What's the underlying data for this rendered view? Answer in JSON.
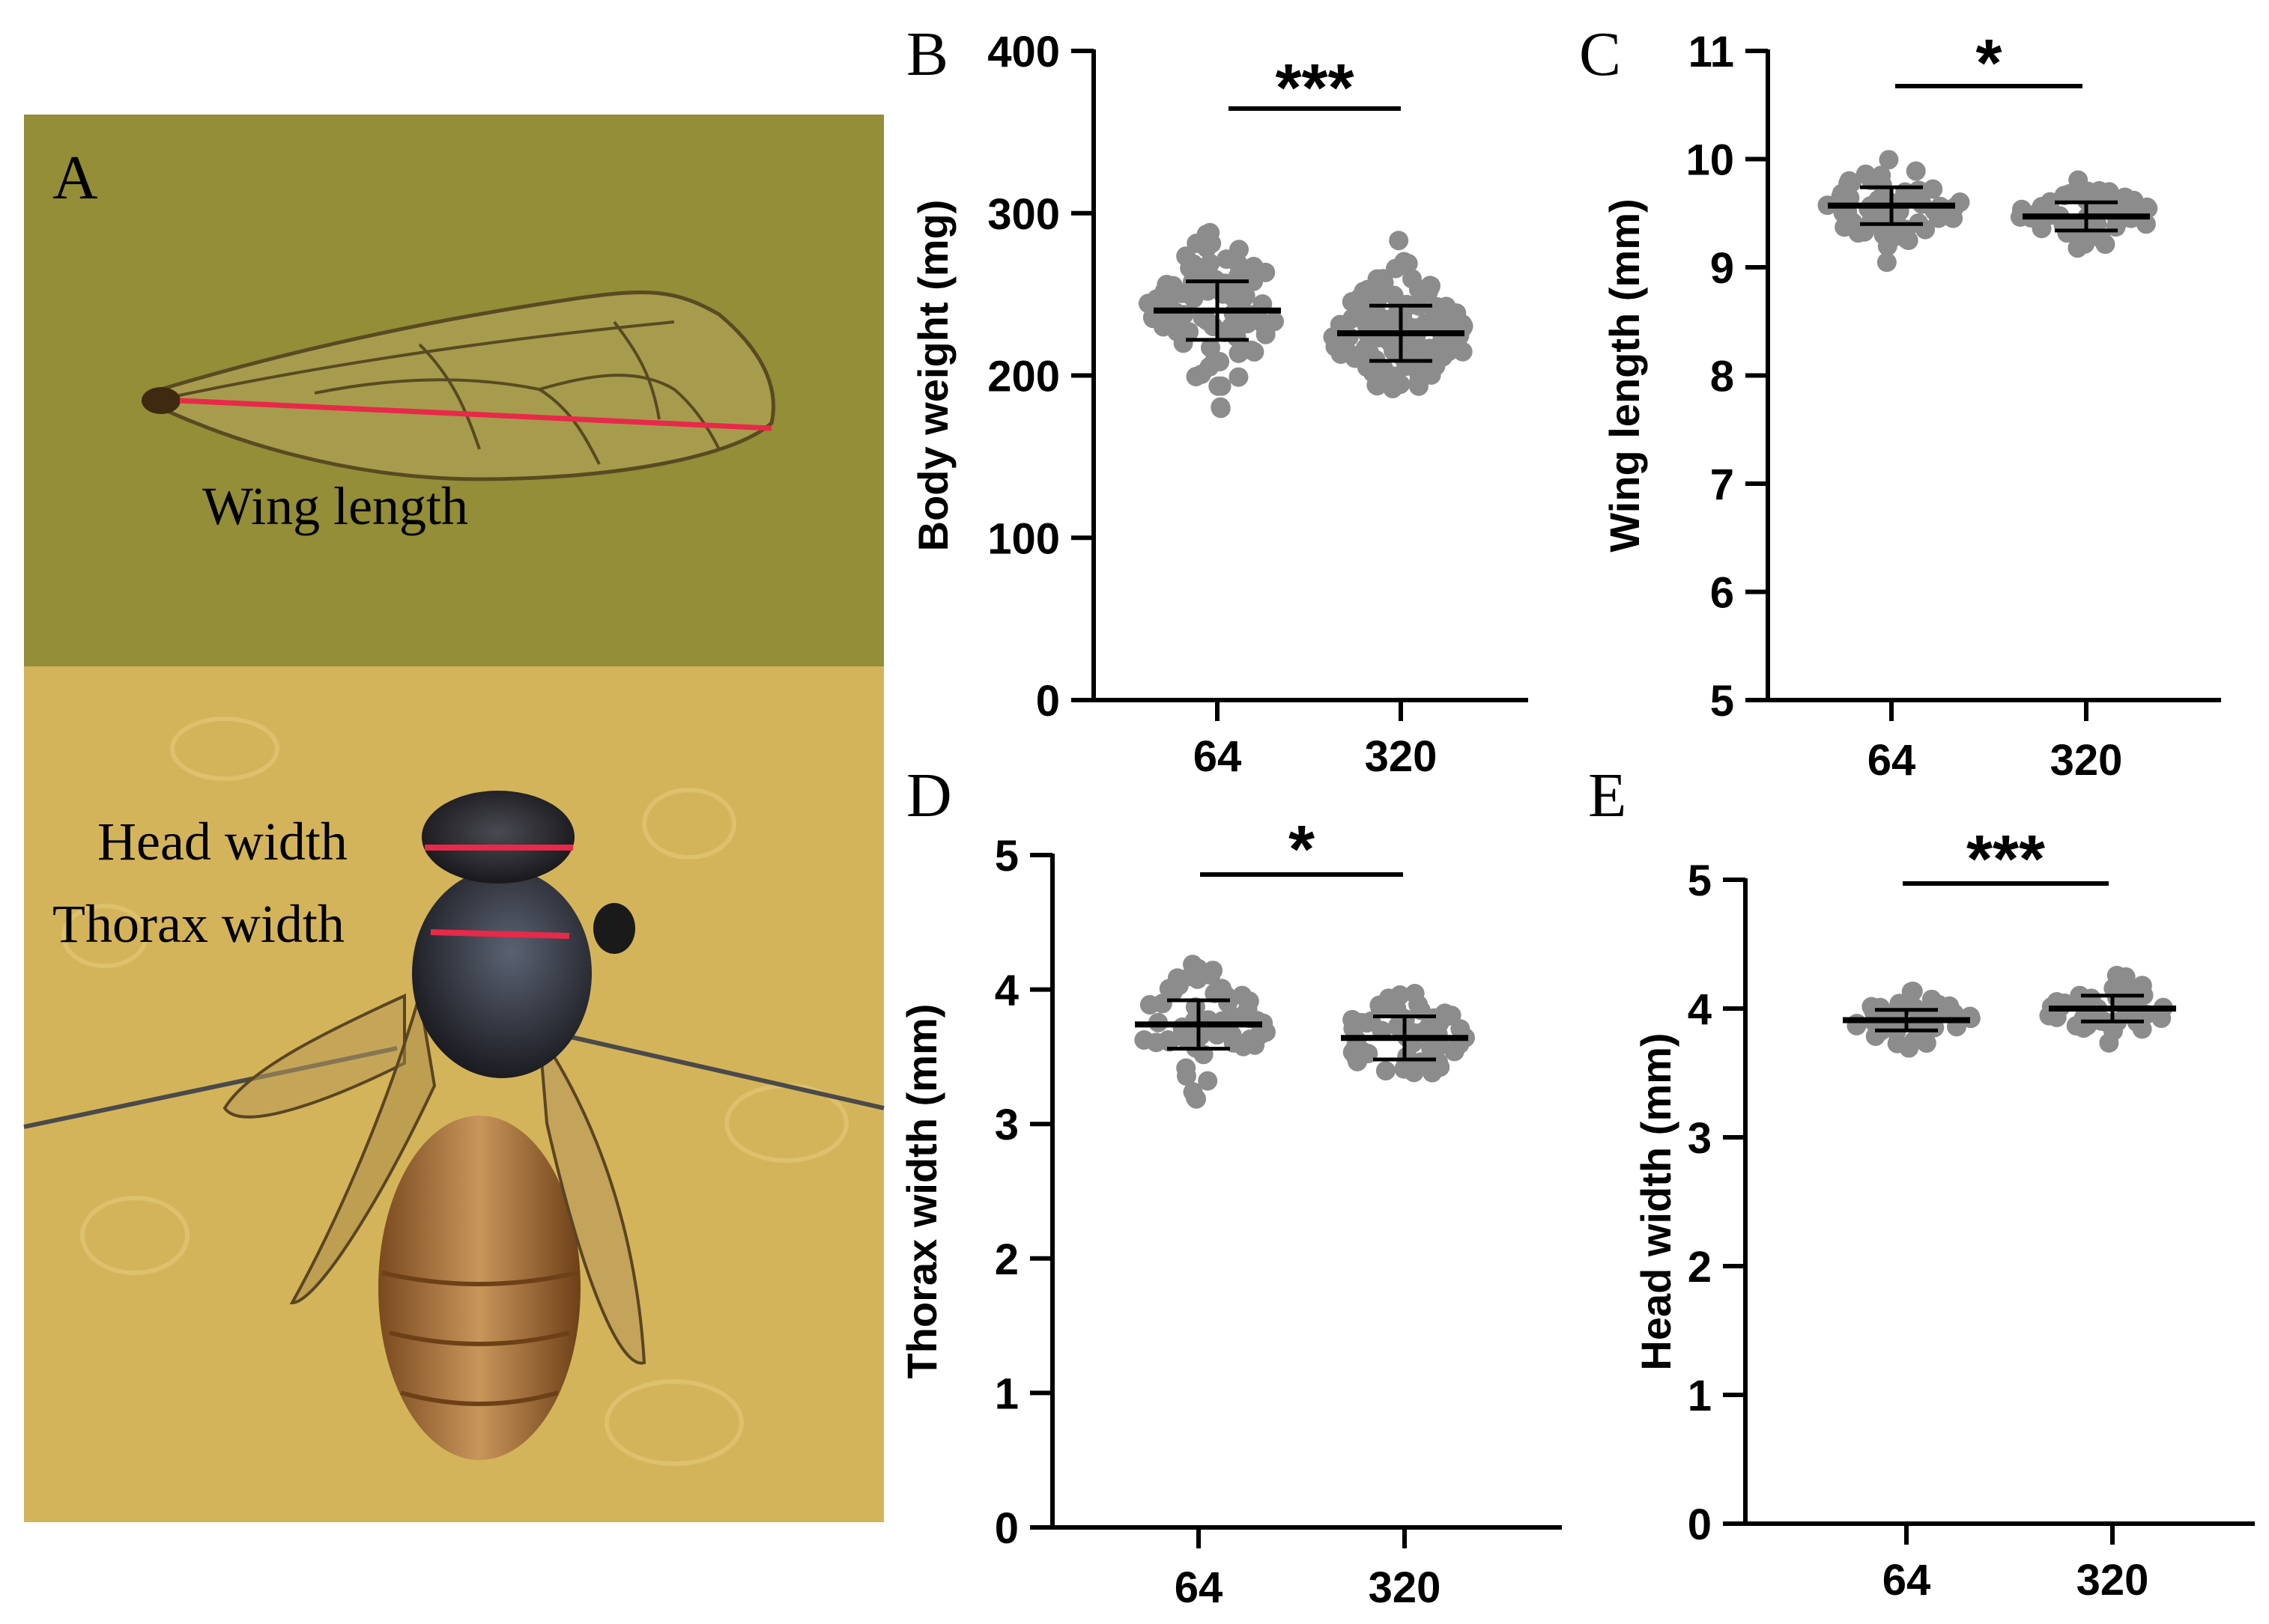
{
  "panel_a": {
    "letter": "A",
    "labels": {
      "wing_length": "Wing length",
      "head_width": "Head width",
      "thorax_width": "Thorax width"
    },
    "colors": {
      "wing_background": "#8f8a34",
      "bee_background": "#d4b45a",
      "measure_line": "#e8294a"
    }
  },
  "colors": {
    "dots": "#8c8c8c",
    "ink": "#000000"
  },
  "chart_data": [
    {
      "panel": "B",
      "type": "scatter",
      "ylabel": "Body weight (mg)",
      "categories": [
        "64",
        "320"
      ],
      "ylim": [
        0,
        400
      ],
      "yticks": [
        "0",
        "100",
        "200",
        "300",
        "400"
      ],
      "series": [
        {
          "mean": 240,
          "sd": 18,
          "n": 90,
          "spread": 24
        },
        {
          "mean": 226,
          "sd": 17,
          "n": 140,
          "spread": 20
        }
      ],
      "significance": "***"
    },
    {
      "panel": "C",
      "type": "scatter",
      "ylabel": "Wing length (mm)",
      "categories": [
        "64",
        "320"
      ],
      "ylim": [
        5,
        11
      ],
      "yticks": [
        "5",
        "6",
        "7",
        "8",
        "9",
        "10",
        "11"
      ],
      "series": [
        {
          "mean": 9.57,
          "sd": 0.17,
          "n": 60,
          "spread": 0.2
        },
        {
          "mean": 9.47,
          "sd": 0.13,
          "n": 50,
          "spread": 0.15
        }
      ],
      "significance": "*"
    },
    {
      "panel": "D",
      "type": "scatter",
      "ylabel": "Thorax width (mm)",
      "categories": [
        "64",
        "320"
      ],
      "ylim": [
        0,
        5
      ],
      "yticks": [
        "0",
        "1",
        "2",
        "3",
        "4",
        "5"
      ],
      "series": [
        {
          "mean": 3.74,
          "sd": 0.18,
          "n": 60,
          "spread": 0.2
        },
        {
          "mean": 3.64,
          "sd": 0.16,
          "n": 60,
          "spread": 0.18
        }
      ],
      "significance": "*"
    },
    {
      "panel": "E",
      "type": "scatter",
      "ylabel": "Head width (mm)",
      "categories": [
        "64",
        "320"
      ],
      "ylim": [
        0,
        5
      ],
      "yticks": [
        "0",
        "1",
        "2",
        "3",
        "4",
        "5"
      ],
      "series": [
        {
          "mean": 3.91,
          "sd": 0.08,
          "n": 40,
          "spread": 0.1
        },
        {
          "mean": 4.0,
          "sd": 0.1,
          "n": 40,
          "spread": 0.12
        }
      ],
      "significance": "***"
    }
  ]
}
